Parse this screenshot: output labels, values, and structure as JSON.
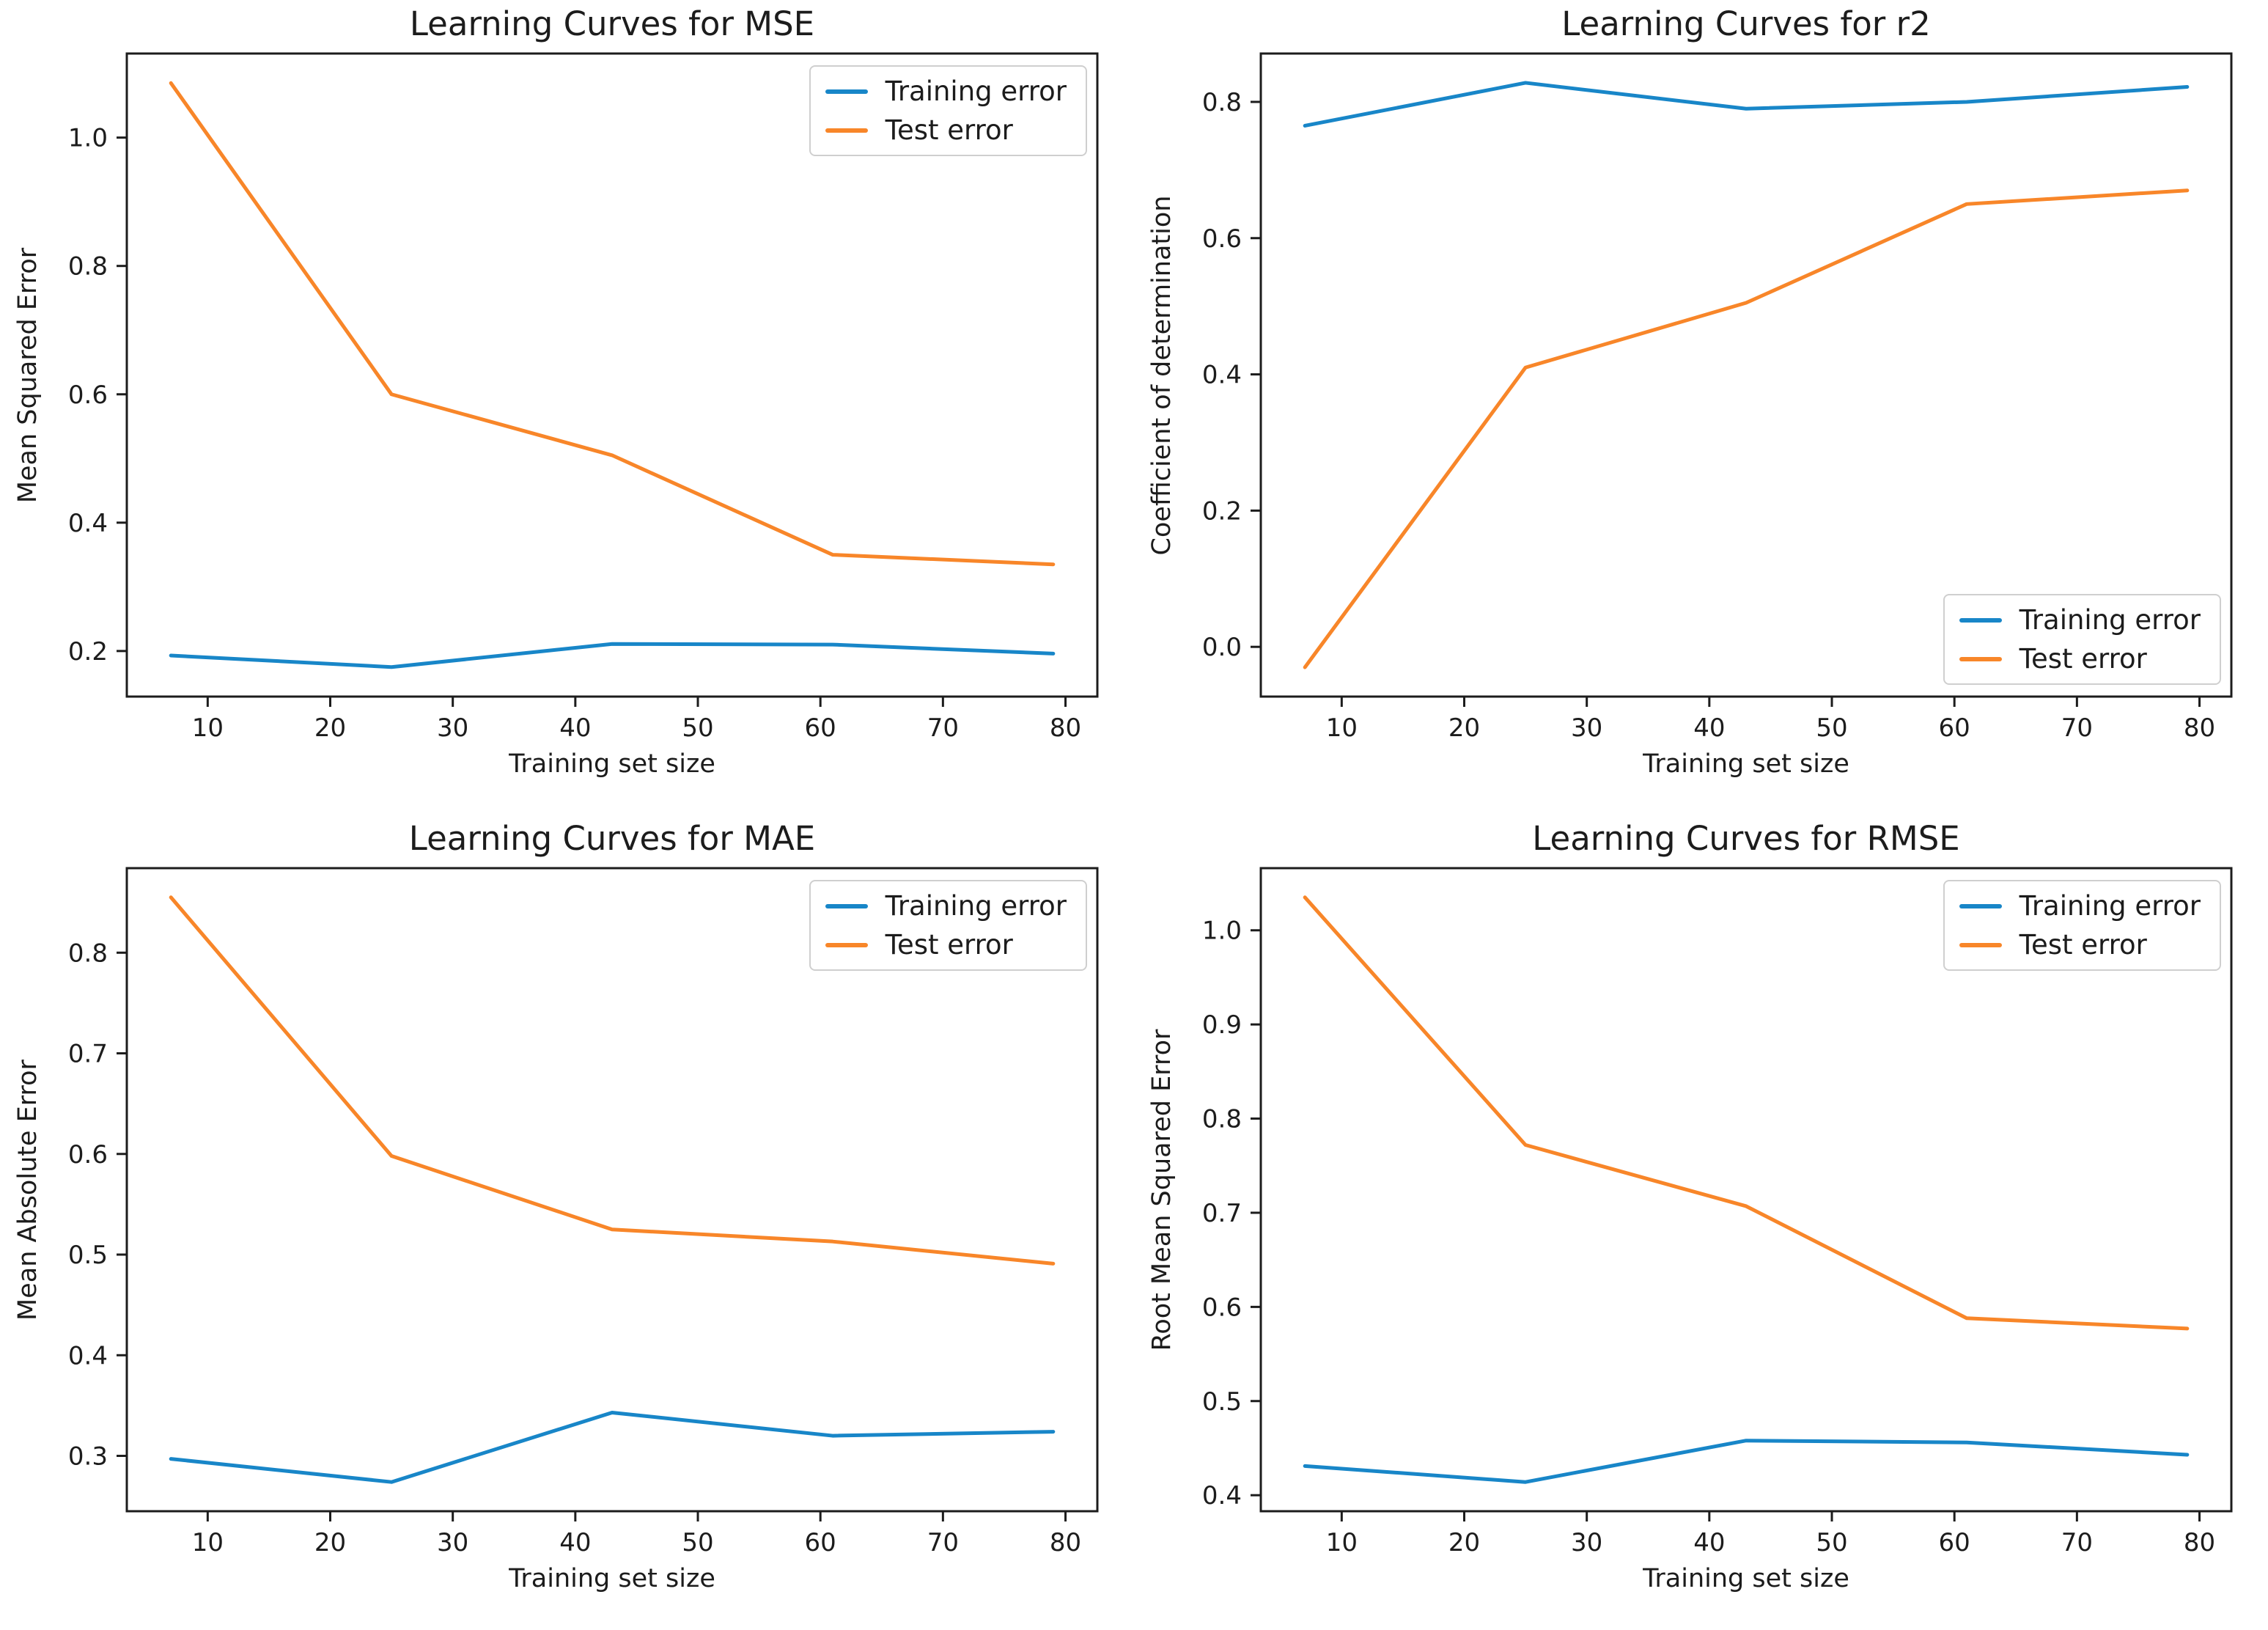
{
  "style": {
    "background": "#ffffff",
    "axis_color": "#1c1c1c",
    "text_color": "#1c1c1c",
    "training_color": "#1886c8",
    "test_color": "#f88629",
    "legend_border": "#cfcfcf"
  },
  "legend": {
    "training_label": "Training error",
    "test_label": "Test error"
  },
  "chart_data": [
    {
      "type": "line",
      "title": "Learning Curves for MSE",
      "xlabel": "Training set size",
      "ylabel": "Mean Squared Error",
      "x": [
        7,
        25,
        43,
        61,
        79
      ],
      "series": [
        {
          "name": "Training error",
          "color": "#1886c8",
          "values": [
            0.193,
            0.175,
            0.211,
            0.21,
            0.196
          ]
        },
        {
          "name": "Test error",
          "color": "#f88629",
          "values": [
            1.085,
            0.6,
            0.505,
            0.35,
            0.335
          ]
        }
      ],
      "xlim": [
        3.4,
        82.6
      ],
      "ylim": [
        0.129,
        1.131
      ],
      "xticks": [
        10,
        20,
        30,
        40,
        50,
        60,
        70,
        80
      ],
      "yticks": [
        0.2,
        0.4,
        0.6,
        0.8,
        1.0
      ],
      "grid": false,
      "legend_position": "top-right"
    },
    {
      "type": "line",
      "title": "Learning Curves for r2",
      "xlabel": "Training set size",
      "ylabel": "Coefficient of determination",
      "x": [
        7,
        25,
        43,
        61,
        79
      ],
      "series": [
        {
          "name": "Training error",
          "color": "#1886c8",
          "values": [
            0.765,
            0.828,
            0.79,
            0.8,
            0.822
          ]
        },
        {
          "name": "Test error",
          "color": "#f88629",
          "values": [
            -0.03,
            0.41,
            0.505,
            0.65,
            0.67
          ]
        }
      ],
      "xlim": [
        3.4,
        82.6
      ],
      "ylim": [
        -0.073,
        0.871
      ],
      "xticks": [
        10,
        20,
        30,
        40,
        50,
        60,
        70,
        80
      ],
      "yticks": [
        0.0,
        0.2,
        0.4,
        0.6,
        0.8
      ],
      "grid": false,
      "legend_position": "bottom-right"
    },
    {
      "type": "line",
      "title": "Learning Curves for MAE",
      "xlabel": "Training set size",
      "ylabel": "Mean Absolute Error",
      "x": [
        7,
        25,
        43,
        61,
        79
      ],
      "series": [
        {
          "name": "Training error",
          "color": "#1886c8",
          "values": [
            0.297,
            0.274,
            0.343,
            0.32,
            0.324
          ]
        },
        {
          "name": "Test error",
          "color": "#f88629",
          "values": [
            0.855,
            0.598,
            0.525,
            0.513,
            0.491
          ]
        }
      ],
      "xlim": [
        3.4,
        82.6
      ],
      "ylim": [
        0.245,
        0.884
      ],
      "xticks": [
        10,
        20,
        30,
        40,
        50,
        60,
        70,
        80
      ],
      "yticks": [
        0.3,
        0.4,
        0.5,
        0.6,
        0.7,
        0.8
      ],
      "grid": false,
      "legend_position": "top-right"
    },
    {
      "type": "line",
      "title": "Learning Curves for RMSE",
      "xlabel": "Training set size",
      "ylabel": "Root Mean Squared Error",
      "x": [
        7,
        25,
        43,
        61,
        79
      ],
      "series": [
        {
          "name": "Training error",
          "color": "#1886c8",
          "values": [
            0.431,
            0.414,
            0.458,
            0.456,
            0.443
          ]
        },
        {
          "name": "Test error",
          "color": "#f88629",
          "values": [
            1.035,
            0.772,
            0.707,
            0.588,
            0.577
          ]
        }
      ],
      "xlim": [
        3.4,
        82.6
      ],
      "ylim": [
        0.383,
        1.066
      ],
      "xticks": [
        10,
        20,
        30,
        40,
        50,
        60,
        70,
        80
      ],
      "yticks": [
        0.4,
        0.5,
        0.6,
        0.7,
        0.8,
        0.9,
        1.0
      ],
      "grid": false,
      "legend_position": "top-right"
    }
  ]
}
